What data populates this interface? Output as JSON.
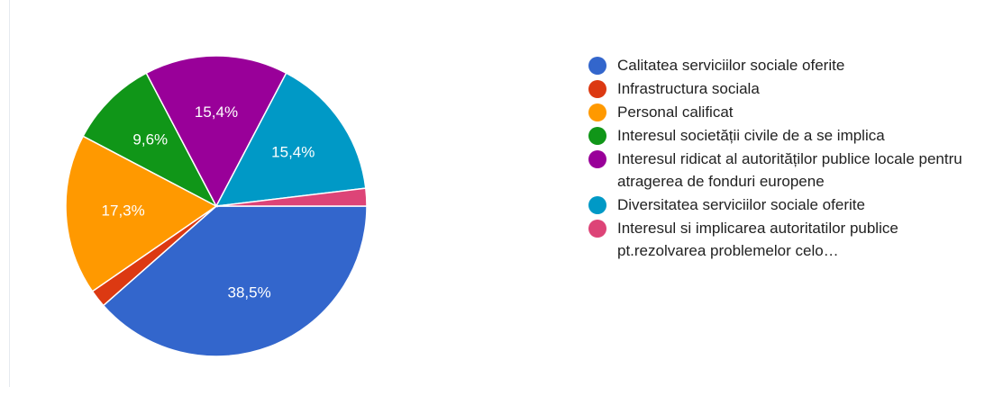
{
  "chart_data": {
    "type": "pie",
    "categories": [
      "Calitatea serviciilor sociale oferite",
      "Infrastructura sociala",
      "Personal calificat",
      "Interesul societății civile de a se implica",
      "Interesul ridicat al autorităților publice locale pentru atragerea de fonduri europene",
      "Diversitatea serviciilor sociale oferite",
      "Interesul si implicarea autoritatilor publice pt.rezolvarea problemelor celo…"
    ],
    "values": [
      38.5,
      1.9,
      17.3,
      9.6,
      15.4,
      15.4,
      1.9
    ],
    "value_labels": [
      "38,5%",
      null,
      "17,3%",
      "9,6%",
      "15,4%",
      "15,4%",
      null
    ],
    "colors": [
      "#3366cc",
      "#dc3912",
      "#ff9900",
      "#109618",
      "#990099",
      "#0099c6",
      "#dd4477"
    ],
    "legend": "right"
  }
}
